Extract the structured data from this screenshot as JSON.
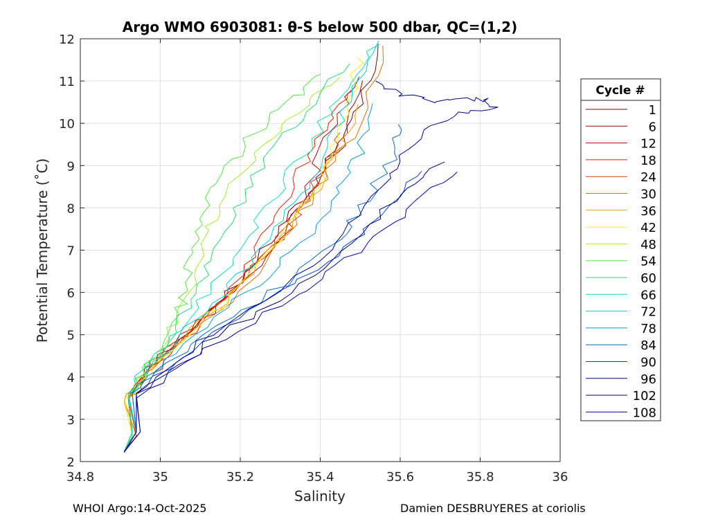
{
  "chart_data": {
    "type": "line",
    "title": "Argo WMO 6903081: θ-S below 500 dbar,  QC=(1,2)",
    "xlabel": "Salinity",
    "ylabel": "Potential Temperature (˚C)",
    "xlim": [
      34.8,
      36
    ],
    "ylim": [
      2,
      12
    ],
    "xticks": [
      "34.8",
      "35",
      "35.2",
      "35.4",
      "35.6",
      "35.8",
      "36"
    ],
    "yticks": [
      "2",
      "3",
      "4",
      "5",
      "6",
      "7",
      "8",
      "9",
      "10",
      "11",
      "12"
    ],
    "grid": true,
    "legend": {
      "title": "Cycle #",
      "placement": "outside-right",
      "entries": [
        {
          "label": "1",
          "color": "#800000"
        },
        {
          "label": "6",
          "color": "#a00000"
        },
        {
          "label": "12",
          "color": "#c00000"
        },
        {
          "label": "18",
          "color": "#e02000"
        },
        {
          "label": "24",
          "color": "#d04000"
        },
        {
          "label": "30",
          "color": "#e07000"
        },
        {
          "label": "36",
          "color": "#f0a000"
        },
        {
          "label": "42",
          "color": "#ffee00"
        },
        {
          "label": "48",
          "color": "#a0f020"
        },
        {
          "label": "54",
          "color": "#50e840"
        },
        {
          "label": "60",
          "color": "#20e070"
        },
        {
          "label": "66",
          "color": "#10e0b0"
        },
        {
          "label": "72",
          "color": "#00d0e0"
        },
        {
          "label": "78",
          "color": "#00a0d0"
        },
        {
          "label": "84",
          "color": "#0070c0"
        },
        {
          "label": "90",
          "color": "#0040e0"
        },
        {
          "label": "96",
          "color": "#000090"
        },
        {
          "label": "102",
          "color": "#000070"
        },
        {
          "label": "108",
          "color": "#0000b0"
        }
      ]
    },
    "series": [
      {
        "color": "#800000",
        "points": [
          [
            34.91,
            2.22
          ],
          [
            34.93,
            2.6
          ],
          [
            34.92,
            3.5
          ],
          [
            35.0,
            4.5
          ],
          [
            35.15,
            5.8
          ],
          [
            35.28,
            7.2
          ],
          [
            35.36,
            8.2
          ],
          [
            35.44,
            9.3
          ],
          [
            35.5,
            10.5
          ],
          [
            35.55,
            11.9
          ]
        ]
      },
      {
        "color": "#a00000",
        "points": [
          [
            34.91,
            2.23
          ],
          [
            34.93,
            2.6
          ],
          [
            34.92,
            3.5
          ],
          [
            35.02,
            4.6
          ],
          [
            35.18,
            6.0
          ],
          [
            35.3,
            7.3
          ],
          [
            35.38,
            8.4
          ],
          [
            35.45,
            9.5
          ],
          [
            35.52,
            11.0
          ]
        ]
      },
      {
        "color": "#c00000",
        "points": [
          [
            34.91,
            2.22
          ],
          [
            34.94,
            2.7
          ],
          [
            34.92,
            3.6
          ],
          [
            35.02,
            4.7
          ],
          [
            35.2,
            6.2
          ],
          [
            35.32,
            7.5
          ],
          [
            35.38,
            8.7
          ],
          [
            35.42,
            9.8
          ],
          [
            35.5,
            11.1
          ]
        ]
      },
      {
        "color": "#e02000",
        "points": [
          [
            34.91,
            2.24
          ],
          [
            34.93,
            2.7
          ],
          [
            34.92,
            3.5
          ],
          [
            35.03,
            4.6
          ],
          [
            35.18,
            6.1
          ],
          [
            35.28,
            7.6
          ],
          [
            35.35,
            8.9
          ],
          [
            35.42,
            10.0
          ],
          [
            35.48,
            10.8
          ]
        ]
      },
      {
        "color": "#d04000",
        "points": [
          [
            34.91,
            2.23
          ],
          [
            34.94,
            2.6
          ],
          [
            34.92,
            3.5
          ],
          [
            35.04,
            4.8
          ],
          [
            35.22,
            6.4
          ],
          [
            35.34,
            7.8
          ],
          [
            35.4,
            8.8
          ],
          [
            35.46,
            9.8
          ]
        ]
      },
      {
        "color": "#e07000",
        "points": [
          [
            34.91,
            2.25
          ],
          [
            34.94,
            2.6
          ],
          [
            34.91,
            3.45
          ],
          [
            35.02,
            4.5
          ],
          [
            35.2,
            6.0
          ],
          [
            35.32,
            7.4
          ],
          [
            35.4,
            8.5
          ],
          [
            35.48,
            9.7
          ],
          [
            35.56,
            11.8
          ]
        ]
      },
      {
        "color": "#f0a000",
        "points": [
          [
            34.91,
            2.22
          ],
          [
            34.93,
            2.7
          ],
          [
            34.91,
            3.4
          ],
          [
            35.0,
            4.4
          ],
          [
            35.16,
            5.8
          ],
          [
            35.3,
            7.2
          ],
          [
            35.38,
            8.3
          ],
          [
            35.44,
            9.3
          ],
          [
            35.5,
            10.4
          ]
        ]
      },
      {
        "color": "#ffee00",
        "points": [
          [
            34.91,
            2.24
          ],
          [
            34.93,
            2.6
          ],
          [
            34.91,
            3.5
          ],
          [
            35.0,
            4.4
          ],
          [
            35.15,
            5.7
          ],
          [
            35.28,
            7.0
          ],
          [
            35.36,
            8.0
          ],
          [
            35.42,
            9.0
          ],
          [
            35.46,
            10.2
          ],
          [
            35.5,
            11.6
          ]
        ]
      },
      {
        "color": "#a0f020",
        "points": [
          [
            34.91,
            2.23
          ],
          [
            34.93,
            2.7
          ],
          [
            34.92,
            3.55
          ],
          [
            34.98,
            4.4
          ],
          [
            35.05,
            5.5
          ],
          [
            35.1,
            6.6
          ],
          [
            35.12,
            7.6
          ],
          [
            35.18,
            8.6
          ],
          [
            35.28,
            9.6
          ],
          [
            35.38,
            10.6
          ],
          [
            35.44,
            11.1
          ]
        ]
      },
      {
        "color": "#50e840",
        "points": [
          [
            34.91,
            2.22
          ],
          [
            34.93,
            2.7
          ],
          [
            34.92,
            3.6
          ],
          [
            34.99,
            4.5
          ],
          [
            35.05,
            5.6
          ],
          [
            35.07,
            6.6
          ],
          [
            35.1,
            7.6
          ],
          [
            35.14,
            8.6
          ],
          [
            35.22,
            9.6
          ],
          [
            35.32,
            10.5
          ],
          [
            35.4,
            11.2
          ]
        ]
      },
      {
        "color": "#20e070",
        "points": [
          [
            34.91,
            2.24
          ],
          [
            34.93,
            2.6
          ],
          [
            34.92,
            3.6
          ],
          [
            35.0,
            4.6
          ],
          [
            35.08,
            5.8
          ],
          [
            35.14,
            7.0
          ],
          [
            35.2,
            8.2
          ],
          [
            35.28,
            9.3
          ],
          [
            35.36,
            10.3
          ],
          [
            35.46,
            11.4
          ]
        ]
      },
      {
        "color": "#10e0b0",
        "points": [
          [
            34.91,
            2.23
          ],
          [
            34.93,
            2.7
          ],
          [
            34.92,
            3.6
          ],
          [
            35.01,
            4.7
          ],
          [
            35.12,
            6.0
          ],
          [
            35.22,
            7.3
          ],
          [
            35.3,
            8.5
          ],
          [
            35.38,
            9.6
          ],
          [
            35.46,
            10.8
          ],
          [
            35.54,
            11.9
          ]
        ]
      },
      {
        "color": "#00d0e0",
        "points": [
          [
            34.91,
            2.24
          ],
          [
            34.94,
            2.7
          ],
          [
            34.92,
            3.6
          ],
          [
            35.02,
            4.7
          ],
          [
            35.16,
            6.0
          ],
          [
            35.28,
            7.3
          ],
          [
            35.36,
            8.5
          ],
          [
            35.42,
            9.5
          ],
          [
            35.48,
            10.7
          ],
          [
            35.54,
            11.9
          ]
        ]
      },
      {
        "color": "#00a0d0",
        "points": [
          [
            34.91,
            2.22
          ],
          [
            34.94,
            2.7
          ],
          [
            34.93,
            3.6
          ],
          [
            35.05,
            4.8
          ],
          [
            35.22,
            6.0
          ],
          [
            35.36,
            7.2
          ],
          [
            35.44,
            8.3
          ],
          [
            35.5,
            9.3
          ],
          [
            35.54,
            10.5
          ]
        ]
      },
      {
        "color": "#0070c0",
        "points": [
          [
            34.91,
            2.23
          ],
          [
            34.94,
            2.7
          ],
          [
            34.93,
            3.6
          ],
          [
            35.08,
            4.8
          ],
          [
            35.28,
            6.0
          ],
          [
            35.44,
            7.2
          ],
          [
            35.52,
            8.2
          ],
          [
            35.58,
            9.2
          ],
          [
            35.6,
            10.0
          ]
        ]
      },
      {
        "color": "#0040e0",
        "points": [
          [
            34.91,
            2.24
          ],
          [
            34.94,
            2.7
          ],
          [
            34.94,
            3.6
          ],
          [
            35.1,
            4.8
          ],
          [
            35.3,
            6.0
          ],
          [
            35.46,
            7.1
          ],
          [
            35.58,
            8.0
          ],
          [
            35.65,
            8.9
          ]
        ]
      },
      {
        "color": "#000090",
        "points": [
          [
            34.91,
            2.22
          ],
          [
            34.94,
            2.7
          ],
          [
            34.94,
            3.6
          ],
          [
            35.1,
            4.8
          ],
          [
            35.3,
            6.0
          ],
          [
            35.44,
            7.2
          ],
          [
            35.55,
            8.5
          ],
          [
            35.62,
            9.4
          ],
          [
            35.72,
            10.2
          ],
          [
            35.84,
            10.4
          ],
          [
            35.8,
            10.6
          ],
          [
            35.7,
            10.5
          ],
          [
            35.6,
            10.7
          ],
          [
            35.54,
            11.0
          ]
        ]
      },
      {
        "color": "#000070",
        "points": [
          [
            34.91,
            2.23
          ],
          [
            34.95,
            2.7
          ],
          [
            34.94,
            3.6
          ],
          [
            35.12,
            4.8
          ],
          [
            35.32,
            6.0
          ],
          [
            35.48,
            7.2
          ],
          [
            35.6,
            8.3
          ],
          [
            35.7,
            9.1
          ]
        ]
      },
      {
        "color": "#0000b0",
        "points": [
          [
            34.91,
            2.24
          ],
          [
            34.95,
            2.7
          ],
          [
            34.94,
            3.5
          ],
          [
            35.12,
            4.7
          ],
          [
            35.34,
            5.9
          ],
          [
            35.5,
            7.0
          ],
          [
            35.62,
            8.0
          ],
          [
            35.74,
            8.9
          ]
        ]
      }
    ]
  },
  "footer": {
    "left": "WHOI Argo:14-Oct-2025",
    "right": "Damien DESBRUYERES at coriolis"
  }
}
